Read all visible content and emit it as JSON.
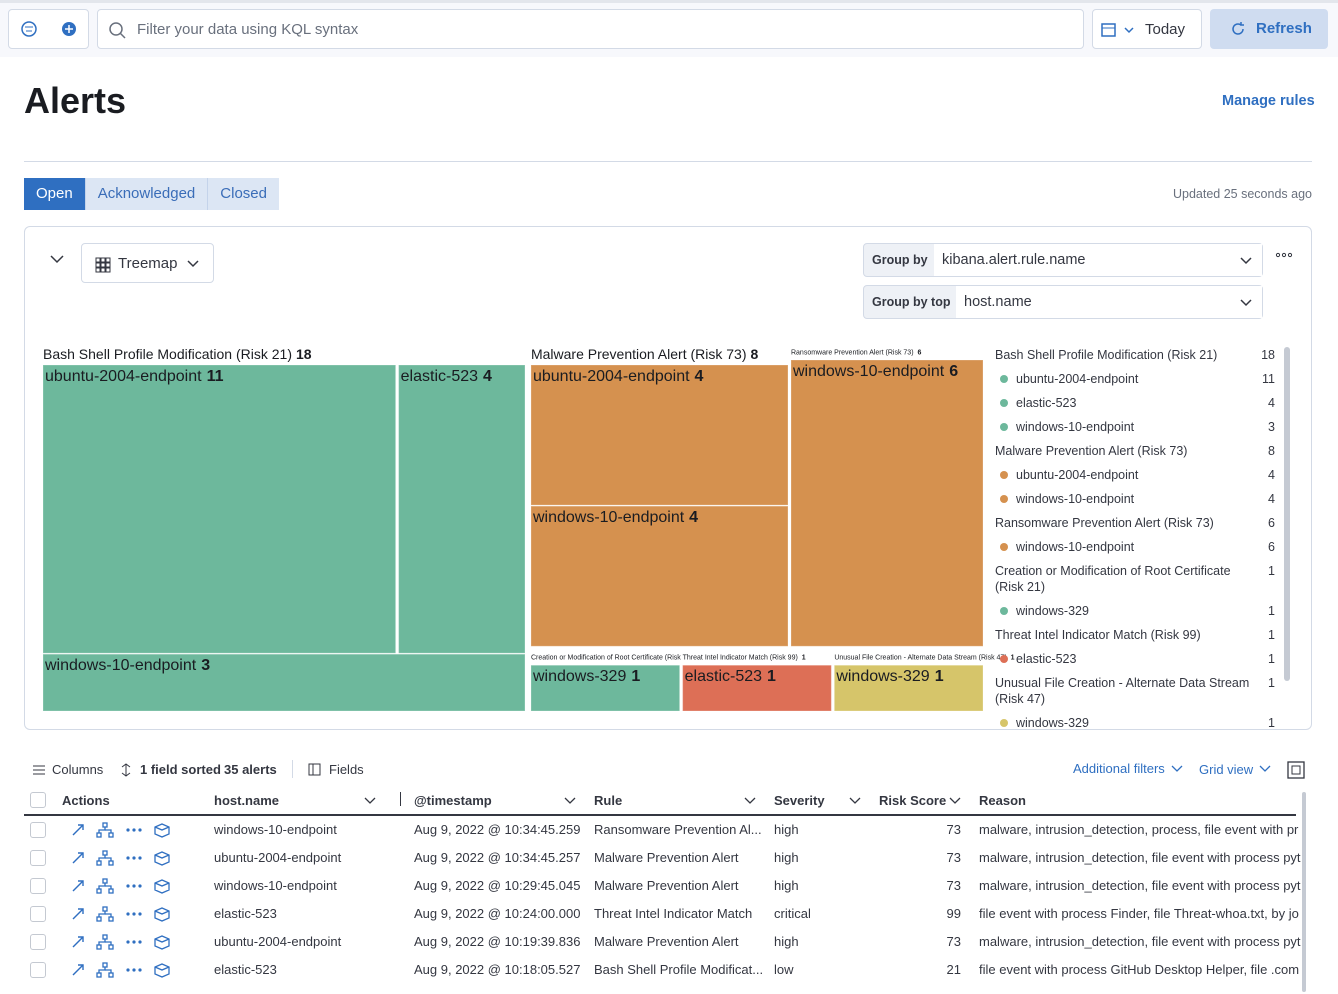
{
  "toolbar": {
    "search_placeholder": "Filter your data using KQL syntax",
    "date": "Today",
    "refresh": "Refresh"
  },
  "header": {
    "title": "Alerts",
    "manage_rules": "Manage rules"
  },
  "tabs": [
    "Open",
    "Acknowledged",
    "Closed"
  ],
  "updated": "Updated 25 seconds ago",
  "panel": {
    "view": "Treemap",
    "group_by_label": "Group by",
    "group_by": "kibana.alert.rule.name",
    "group_by_top_label": "Group by top",
    "group_by_top": "host.name"
  },
  "chart_data": {
    "type": "treemap",
    "groups": [
      {
        "name": "Bash Shell Profile Modification (Risk 21)",
        "value": 18,
        "color": "#6db89c",
        "children": [
          {
            "name": "ubuntu-2004-endpoint",
            "value": 11
          },
          {
            "name": "elastic-523",
            "value": 4
          },
          {
            "name": "windows-10-endpoint",
            "value": 3
          }
        ]
      },
      {
        "name": "Malware Prevention Alert (Risk 73)",
        "value": 8,
        "color": "#d5914f",
        "children": [
          {
            "name": "ubuntu-2004-endpoint",
            "value": 4
          },
          {
            "name": "windows-10-endpoint",
            "value": 4
          }
        ]
      },
      {
        "name": "Ransomware Prevention Alert (Risk 73)",
        "value": 6,
        "color": "#d5914f",
        "children": [
          {
            "name": "windows-10-endpoint",
            "value": 6
          }
        ]
      },
      {
        "name": "Creation or Modification of Root Certificate (Risk 21)",
        "value": 1,
        "color": "#6db89c",
        "children": [
          {
            "name": "windows-329",
            "value": 1
          }
        ]
      },
      {
        "name": "Threat Intel Indicator Match (Risk 99)",
        "value": 1,
        "color": "#dd6f56",
        "children": [
          {
            "name": "elastic-523",
            "value": 1
          }
        ]
      },
      {
        "name": "Unusual File Creation - Alternate Data Stream (Risk 47)",
        "value": 1,
        "color": "#d6c56a",
        "children": [
          {
            "name": "windows-329",
            "value": 1
          }
        ]
      }
    ]
  },
  "table": {
    "toolbar": {
      "columns": "Columns",
      "sorted": "1 field sorted",
      "count": "35 alerts",
      "fields": "Fields",
      "additional_filters": "Additional filters",
      "grid_view": "Grid view"
    },
    "columns": [
      "Actions",
      "host.name",
      "@timestamp",
      "Rule",
      "Severity",
      "Risk Score",
      "Reason"
    ],
    "rows": [
      [
        "windows-10-endpoint",
        "Aug 9, 2022 @ 10:34:45.259",
        "Ransomware Prevention Al...",
        "high",
        73,
        "malware, intrusion_detection, process, file event with pr"
      ],
      [
        "ubuntu-2004-endpoint",
        "Aug 9, 2022 @ 10:34:45.257",
        "Malware Prevention Alert",
        "high",
        73,
        "malware, intrusion_detection, file event with process pyt"
      ],
      [
        "windows-10-endpoint",
        "Aug 9, 2022 @ 10:29:45.045",
        "Malware Prevention Alert",
        "high",
        73,
        "malware, intrusion_detection, file event with process pyt"
      ],
      [
        "elastic-523",
        "Aug 9, 2022 @ 10:24:00.000",
        "Threat Intel Indicator Match",
        "critical",
        99,
        "file event with process Finder, file Threat-whoa.txt, by jo"
      ],
      [
        "ubuntu-2004-endpoint",
        "Aug 9, 2022 @ 10:19:39.836",
        "Malware Prevention Alert",
        "high",
        73,
        "malware, intrusion_detection, file event with process pyt"
      ],
      [
        "elastic-523",
        "Aug 9, 2022 @ 10:18:05.527",
        "Bash Shell Profile Modificat...",
        "low",
        21,
        "file event with process GitHub Desktop Helper, file .com"
      ]
    ]
  }
}
